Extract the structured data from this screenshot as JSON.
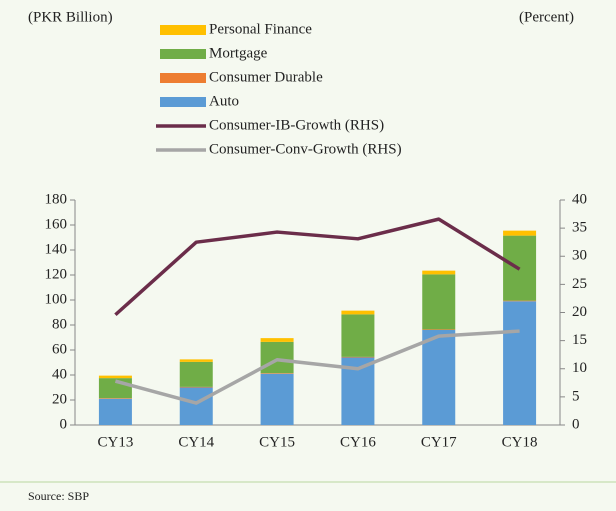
{
  "chart_data": {
    "type": "bar",
    "y_label": "(PKR Billion)",
    "y2_label": "(Percent)",
    "source": "Source: SBP",
    "categories": [
      "CY13",
      "CY14",
      "CY15",
      "CY16",
      "CY17",
      "CY18"
    ],
    "series": [
      {
        "name": "Auto",
        "color": "#5b9bd5",
        "values": [
          21,
          30,
          41,
          54,
          76,
          99
        ]
      },
      {
        "name": "Consumer Durable",
        "color": "#ed7d31",
        "values": [
          0.5,
          0.5,
          0.5,
          0.5,
          0.5,
          0.5
        ]
      },
      {
        "name": "Mortgage",
        "color": "#70ad47",
        "values": [
          16,
          20,
          25,
          34,
          44,
          52
        ]
      },
      {
        "name": "Personal Finance",
        "color": "#ffc000",
        "values": [
          2,
          2,
          3,
          3,
          3,
          4
        ]
      },
      {
        "name": "Consumer-IB-Growth (RHS)",
        "color": "#6b2d4a",
        "type": "line",
        "axis": "y2",
        "values": [
          19.6,
          32.5,
          34.3,
          33.1,
          36.6,
          27.7
        ]
      },
      {
        "name": "Consumer-Conv-Growth (RHS)",
        "color": "#a6a6a6",
        "type": "line",
        "axis": "y2",
        "values": [
          7.8,
          3.9,
          11.6,
          10,
          15.8,
          16.7
        ]
      }
    ],
    "ylim": [
      0,
      180
    ],
    "yticks": [
      0,
      20,
      40,
      60,
      80,
      100,
      120,
      140,
      160,
      180
    ],
    "y2lim": [
      0,
      40
    ],
    "y2ticks": [
      0,
      5,
      10,
      15,
      20,
      25,
      30,
      35,
      40
    ]
  }
}
